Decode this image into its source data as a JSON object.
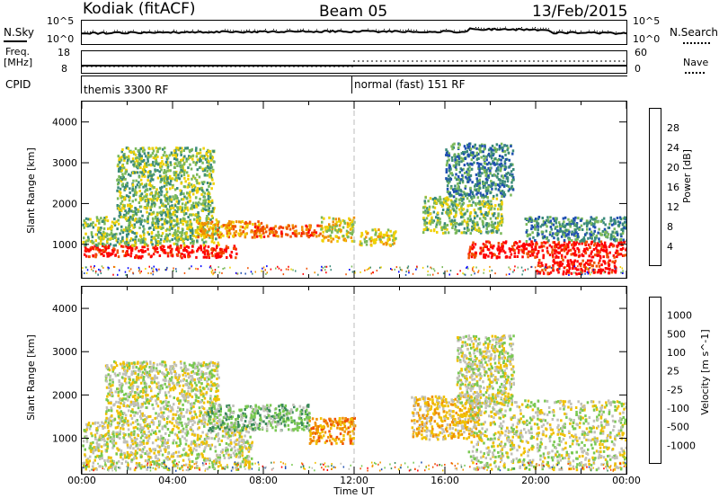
{
  "header": {
    "station": "Kodiak (fitACF)",
    "beam": "Beam 05",
    "date": "13/Feb/2015"
  },
  "sky_panel": {
    "left_label": "N.Sky",
    "right_label": "N.Search",
    "left_ticks": [
      "10^5",
      "10^0"
    ],
    "right_ticks": [
      "10^5",
      "10^0"
    ]
  },
  "freq_panel": {
    "left_label_1": "Freq.",
    "left_label_2": "[MHz]",
    "right_label": "Nave",
    "left_ticks": [
      "18",
      "8"
    ],
    "right_ticks": [
      "60",
      "0"
    ]
  },
  "cpid": {
    "label": "CPID",
    "segments": [
      {
        "text": "themis 3300 RF",
        "start_hour": 0
      },
      {
        "text": "normal (fast) 151 RF",
        "start_hour": 12
      }
    ]
  },
  "chart_data": [
    {
      "type": "heatmap",
      "panel": "power",
      "ylabel": "Slant Range [km]",
      "yticks": [
        1000,
        2000,
        3000,
        4000
      ],
      "ylim": [
        180,
        4500
      ],
      "xlim_hours": [
        0,
        24
      ],
      "colorbar_label": "Power [dB]",
      "colorbar_ticks": [
        "28",
        "24",
        "20",
        "16",
        "12",
        "8",
        "4"
      ],
      "colors": [
        "#0000ff",
        "#1f4fb0",
        "#3a8a7a",
        "#7ab85a",
        "#f0d000",
        "#f09000",
        "#f05000",
        "#ff0000"
      ],
      "scatter_regions": [
        {
          "hours": [
            0.0,
            6.8
          ],
          "range_km": [
            700,
            1000
          ],
          "level": 7
        },
        {
          "hours": [
            0.0,
            6.0
          ],
          "range_km": [
            1000,
            1700
          ],
          "level": 3
        },
        {
          "hours": [
            1.5,
            5.8
          ],
          "range_km": [
            1700,
            3400
          ],
          "level": 3
        },
        {
          "hours": [
            5.0,
            8.0
          ],
          "range_km": [
            1200,
            1600
          ],
          "level": 5
        },
        {
          "hours": [
            7.5,
            10.5
          ],
          "range_km": [
            1200,
            1500
          ],
          "level": 6
        },
        {
          "hours": [
            10.5,
            12.0
          ],
          "range_km": [
            1100,
            1700
          ],
          "level": 4
        },
        {
          "hours": [
            12.2,
            13.8
          ],
          "range_km": [
            1000,
            1400
          ],
          "level": 4
        },
        {
          "hours": [
            15.0,
            18.5
          ],
          "range_km": [
            1300,
            2200
          ],
          "level": 3
        },
        {
          "hours": [
            16.0,
            19.0
          ],
          "range_km": [
            2200,
            3500
          ],
          "level": 2
        },
        {
          "hours": [
            17.0,
            24.0
          ],
          "range_km": [
            700,
            1100
          ],
          "level": 7
        },
        {
          "hours": [
            19.5,
            24.0
          ],
          "range_km": [
            1100,
            1700
          ],
          "level": 2
        },
        {
          "hours": [
            20.0,
            23.5
          ],
          "range_km": [
            300,
            650
          ],
          "level": 7
        }
      ]
    },
    {
      "type": "heatmap",
      "panel": "velocity",
      "ylabel": "Slant Range [km]",
      "yticks": [
        1000,
        2000,
        3000,
        4000
      ],
      "ylim": [
        180,
        4500
      ],
      "xlim_hours": [
        0,
        24
      ],
      "xticks": [
        "00:00",
        "04:00",
        "08:00",
        "12:00",
        "16:00",
        "20:00",
        "00:00"
      ],
      "xlabel": "Time UT",
      "colorbar_label": "Velocity [m s^-1]",
      "colorbar_ticks": [
        "1000",
        "500",
        "100",
        "25",
        "-25",
        "-100",
        "-500",
        "-1000"
      ],
      "colors": [
        "#ff0000",
        "#f05000",
        "#f09000",
        "#f0c000",
        "#c0c0b8",
        "#78c850",
        "#3a8a5a",
        "#1f4fb0"
      ],
      "scatter_regions": [
        {
          "hours": [
            0.0,
            7.5
          ],
          "range_km": [
            300,
            1400
          ],
          "level": 4
        },
        {
          "hours": [
            1.0,
            6.0
          ],
          "range_km": [
            1400,
            2800
          ],
          "level": 4
        },
        {
          "hours": [
            5.5,
            10.0
          ],
          "range_km": [
            1200,
            1800
          ],
          "level": 5
        },
        {
          "hours": [
            10.0,
            12.0
          ],
          "range_km": [
            900,
            1500
          ],
          "level": 2
        },
        {
          "hours": [
            14.5,
            17.5
          ],
          "range_km": [
            1000,
            2000
          ],
          "level": 3
        },
        {
          "hours": [
            16.5,
            19.0
          ],
          "range_km": [
            1800,
            3400
          ],
          "level": 4
        },
        {
          "hours": [
            17.0,
            24.0
          ],
          "range_km": [
            300,
            1900
          ],
          "level": 4
        }
      ]
    }
  ]
}
